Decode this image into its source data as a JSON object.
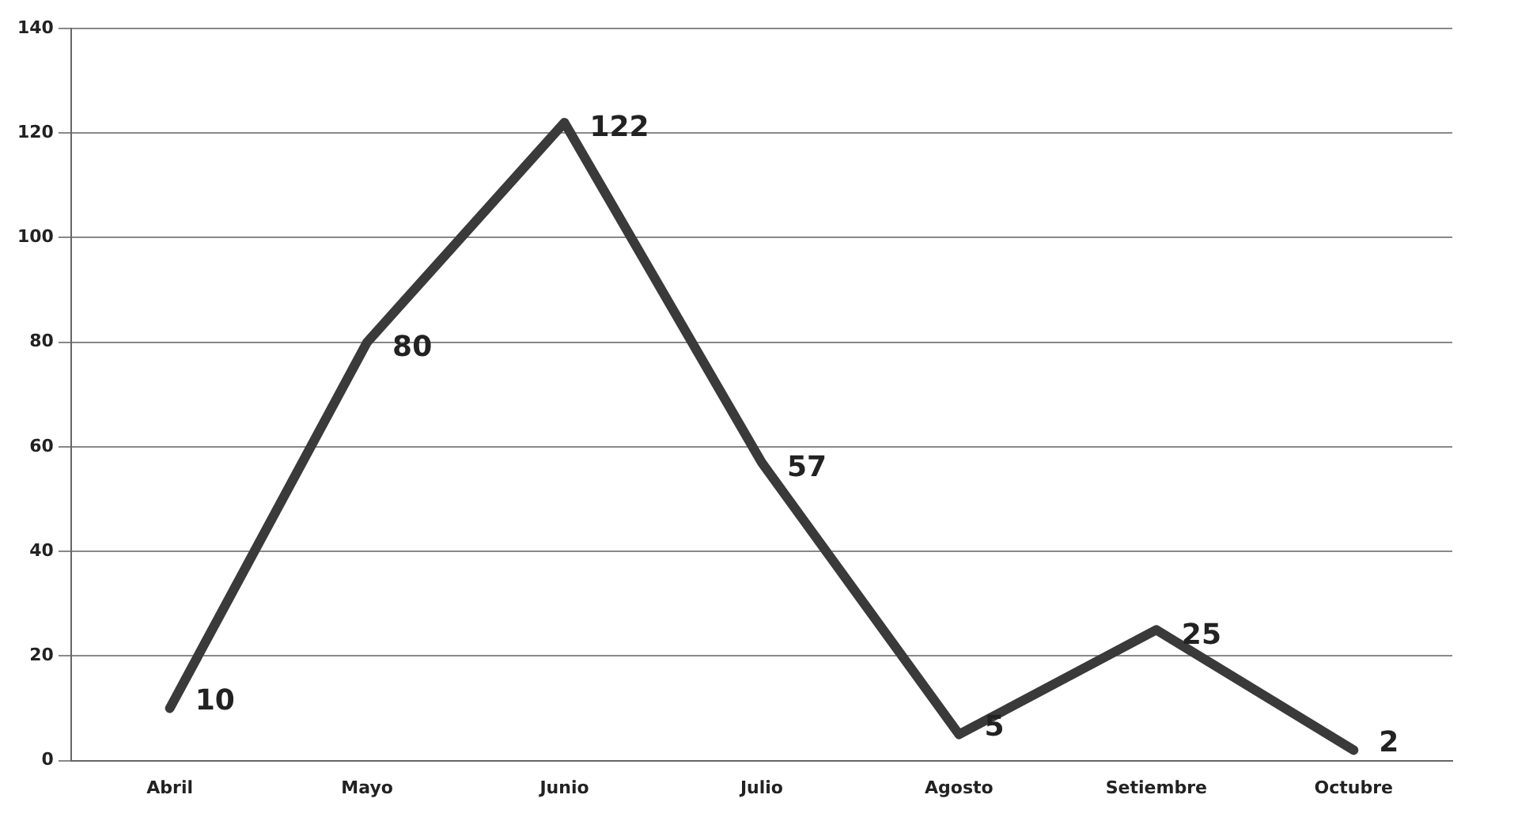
{
  "chart_data": {
    "type": "line",
    "categories": [
      "Abril",
      "Mayo",
      "Junio",
      "Julio",
      "Agosto",
      "Setiembre",
      "Octubre"
    ],
    "series": [
      {
        "color": "#3a3a3a",
        "values": [
          10,
          80,
          122,
          57,
          5,
          25,
          2
        ]
      }
    ],
    "ylim": [
      0,
      140
    ],
    "yticks": [
      0,
      20,
      40,
      60,
      80,
      100,
      120,
      140
    ],
    "grid": "y",
    "data_labels": true,
    "marker": "none",
    "line_style": "solid"
  }
}
